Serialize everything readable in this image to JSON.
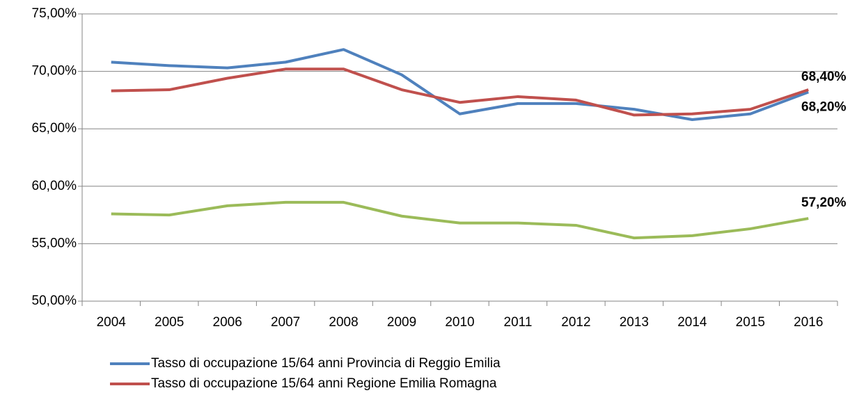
{
  "chart_data": {
    "type": "line",
    "categories": [
      "2004",
      "2005",
      "2006",
      "2007",
      "2008",
      "2009",
      "2010",
      "2011",
      "2012",
      "2013",
      "2014",
      "2015",
      "2016"
    ],
    "series": [
      {
        "name": "Tasso di occupazione 15/64 anni Provincia di Reggio Emilia",
        "color": "#4f81bd",
        "values": [
          70.8,
          70.5,
          70.3,
          70.8,
          71.9,
          69.7,
          66.3,
          67.2,
          67.2,
          66.7,
          65.8,
          66.3,
          68.2
        ],
        "value_labels": [
          null,
          null,
          null,
          null,
          null,
          null,
          null,
          null,
          null,
          null,
          null,
          null,
          "68,20%"
        ]
      },
      {
        "name": "Tasso di occupazione 15/64 anni Regione Emilia Romagna",
        "color": "#c0504d",
        "values": [
          68.3,
          68.4,
          69.4,
          70.2,
          70.2,
          68.4,
          67.3,
          67.8,
          67.5,
          66.2,
          66.3,
          66.7,
          68.4
        ],
        "value_labels": [
          null,
          null,
          null,
          null,
          null,
          null,
          null,
          null,
          null,
          null,
          null,
          null,
          "68,40%"
        ]
      },
      {
        "color": "#9bbb59",
        "values": [
          57.6,
          57.5,
          58.3,
          58.6,
          58.6,
          57.4,
          56.8,
          56.8,
          56.6,
          55.5,
          55.7,
          56.3,
          57.2
        ],
        "value_labels": [
          null,
          null,
          null,
          null,
          null,
          null,
          null,
          null,
          null,
          null,
          null,
          null,
          "57,20%"
        ]
      }
    ],
    "ylim": [
      50,
      75
    ],
    "yticks": [
      {
        "value": 50,
        "label": "50,00%"
      },
      {
        "value": 55,
        "label": "55,00%"
      },
      {
        "value": 60,
        "label": "60,00%"
      },
      {
        "value": 65,
        "label": "65,00%"
      },
      {
        "value": 70,
        "label": "70,00%"
      },
      {
        "value": 75,
        "label": "75,00%"
      }
    ],
    "grid": true
  }
}
